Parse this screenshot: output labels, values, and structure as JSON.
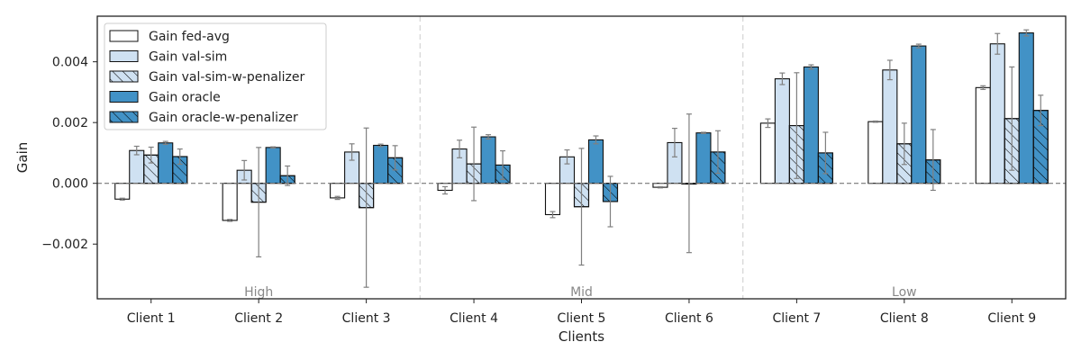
{
  "chart_data": {
    "type": "bar",
    "xlabel": "Clients",
    "ylabel": "Gain",
    "ylim": [
      -0.0038,
      0.0055
    ],
    "yticks": [
      -0.002,
      0.0,
      0.002,
      0.004
    ],
    "ytick_labels": [
      "−0.002",
      "0.000",
      "0.002",
      "0.004"
    ],
    "grid": false,
    "legend_position": "top-left",
    "categories": [
      "Client 1",
      "Client 2",
      "Client 3",
      "Client 4",
      "Client 5",
      "Client 6",
      "Client 7",
      "Client 8",
      "Client 9"
    ],
    "groups": [
      {
        "label": "High",
        "start": 0,
        "end": 2
      },
      {
        "label": "Mid",
        "start": 3,
        "end": 5
      },
      {
        "label": "Low",
        "start": 6,
        "end": 8
      }
    ],
    "series": [
      {
        "name": "Gain fed-avg",
        "color": "#ffffff",
        "hatch": false,
        "values": [
          -0.00052,
          -0.00122,
          -0.00048,
          -0.00023,
          -0.00103,
          -0.00013,
          0.00198,
          0.00203,
          0.00315
        ],
        "errors": [
          3e-05,
          3e-05,
          5e-05,
          0.00012,
          0.0001,
          2e-05,
          0.00014,
          2e-05,
          6e-05
        ]
      },
      {
        "name": "Gain val-sim",
        "color": "#cfe1f2",
        "hatch": false,
        "values": [
          0.00108,
          0.00043,
          0.00103,
          0.00113,
          0.00087,
          0.00134,
          0.00344,
          0.00373,
          0.00459
        ],
        "errors": [
          0.00014,
          0.00032,
          0.00027,
          0.00029,
          0.00023,
          0.00047,
          0.00019,
          0.00032,
          0.00034
        ]
      },
      {
        "name": "Gain val-sim-w-penalizer",
        "color": "#cfe1f2",
        "hatch": true,
        "values": [
          0.00093,
          -0.00062,
          -0.0008,
          0.00064,
          -0.00077,
          0.0,
          0.0019,
          0.0013,
          0.00213
        ],
        "errors": [
          0.00026,
          0.0018,
          0.00262,
          0.00121,
          0.00192,
          0.00228,
          0.00174,
          0.00068,
          0.0017
        ]
      },
      {
        "name": "Gain oracle",
        "color": "#4292c6",
        "hatch": false,
        "values": [
          0.00133,
          0.00118,
          0.00125,
          0.00153,
          0.00143,
          0.00166,
          0.00383,
          0.00452,
          0.00495
        ],
        "errors": [
          5e-05,
          2e-05,
          4e-05,
          7e-05,
          0.00013,
          2e-05,
          7e-05,
          6e-05,
          0.0001
        ]
      },
      {
        "name": "Gain oracle-w-penalizer",
        "color": "#4292c6",
        "hatch": true,
        "values": [
          0.00088,
          0.00025,
          0.00084,
          0.0006,
          -0.0006,
          0.00103,
          0.001,
          0.00077,
          0.0024
        ],
        "errors": [
          0.00025,
          0.00032,
          0.0004,
          0.00047,
          0.00083,
          0.0007,
          0.00068,
          0.001,
          0.0005
        ]
      }
    ]
  }
}
